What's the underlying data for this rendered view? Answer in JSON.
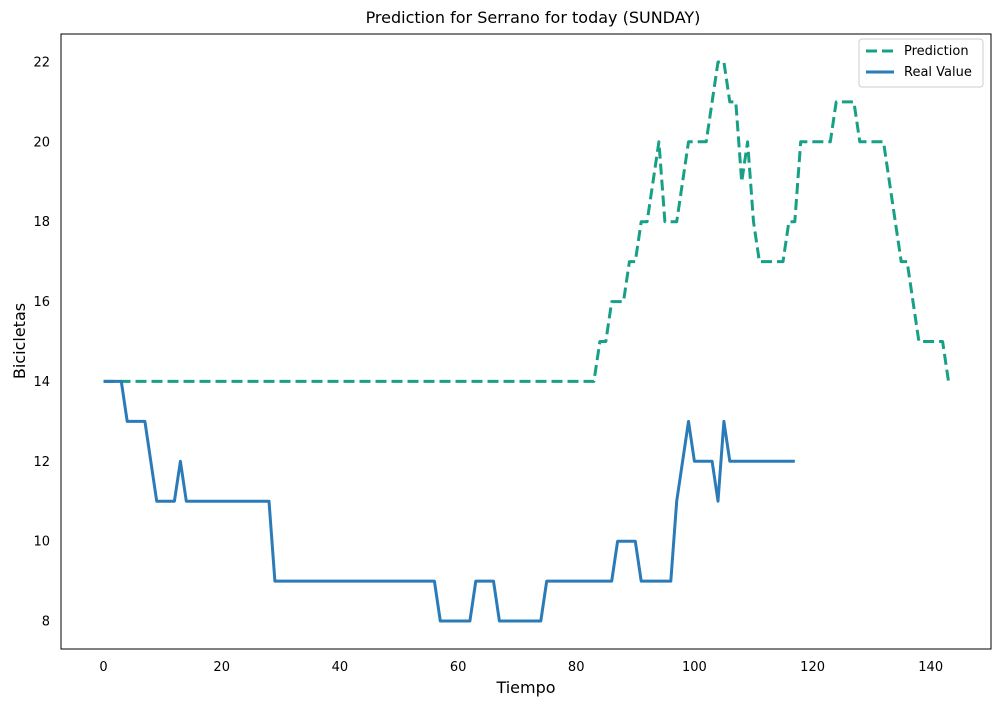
{
  "chart_data": {
    "type": "line",
    "title": "Prediction for Serrano for today (SUNDAY)",
    "xlabel": "Tiempo",
    "ylabel": "Bicicletas",
    "xlim": [
      -7.2,
      150.2
    ],
    "ylim": [
      7.3,
      22.7
    ],
    "xticks": [
      0,
      20,
      40,
      60,
      80,
      100,
      120,
      140
    ],
    "yticks": [
      8,
      10,
      12,
      14,
      16,
      18,
      20,
      22
    ],
    "grid": false,
    "legend_position": "top-right",
    "series": [
      {
        "name": "Prediction",
        "color": "#17a085",
        "style": "dashed",
        "points": [
          [
            0,
            14
          ],
          [
            83,
            14
          ],
          [
            84,
            15
          ],
          [
            85,
            15
          ],
          [
            86,
            16
          ],
          [
            88,
            16
          ],
          [
            89,
            17
          ],
          [
            90,
            17
          ],
          [
            91,
            18
          ],
          [
            92,
            18
          ],
          [
            93,
            19
          ],
          [
            94,
            20
          ],
          [
            95,
            18
          ],
          [
            97,
            18
          ],
          [
            98,
            19
          ],
          [
            99,
            20
          ],
          [
            101,
            20
          ],
          [
            102,
            20
          ],
          [
            103,
            21
          ],
          [
            104,
            22
          ],
          [
            105,
            22
          ],
          [
            106,
            21
          ],
          [
            107,
            21
          ],
          [
            108,
            19
          ],
          [
            109,
            20
          ],
          [
            110,
            18
          ],
          [
            111,
            17
          ],
          [
            115,
            17
          ],
          [
            116,
            18
          ],
          [
            117,
            18
          ],
          [
            118,
            20
          ],
          [
            123,
            20
          ],
          [
            124,
            21
          ],
          [
            127,
            21
          ],
          [
            128,
            20
          ],
          [
            132,
            20
          ],
          [
            133,
            19
          ],
          [
            135,
            17
          ],
          [
            136,
            17
          ],
          [
            137,
            16
          ],
          [
            138,
            15
          ],
          [
            142,
            15
          ],
          [
            143,
            14
          ]
        ]
      },
      {
        "name": "Real Value",
        "color": "#2b7bb9",
        "style": "solid",
        "points": [
          [
            0,
            14
          ],
          [
            3,
            14
          ],
          [
            4,
            13
          ],
          [
            7,
            13
          ],
          [
            9,
            11
          ],
          [
            12,
            11
          ],
          [
            13,
            12
          ],
          [
            14,
            11
          ],
          [
            28,
            11
          ],
          [
            29,
            9
          ],
          [
            56,
            9
          ],
          [
            57,
            8
          ],
          [
            62,
            8
          ],
          [
            63,
            9
          ],
          [
            66,
            9
          ],
          [
            67,
            8
          ],
          [
            74,
            8
          ],
          [
            75,
            9
          ],
          [
            86,
            9
          ],
          [
            87,
            10
          ],
          [
            90,
            10
          ],
          [
            91,
            9
          ],
          [
            96,
            9
          ],
          [
            97,
            11
          ],
          [
            99,
            13
          ],
          [
            100,
            12
          ],
          [
            103,
            12
          ],
          [
            104,
            11
          ],
          [
            105,
            13
          ],
          [
            106,
            12
          ],
          [
            117,
            12
          ]
        ]
      }
    ]
  }
}
